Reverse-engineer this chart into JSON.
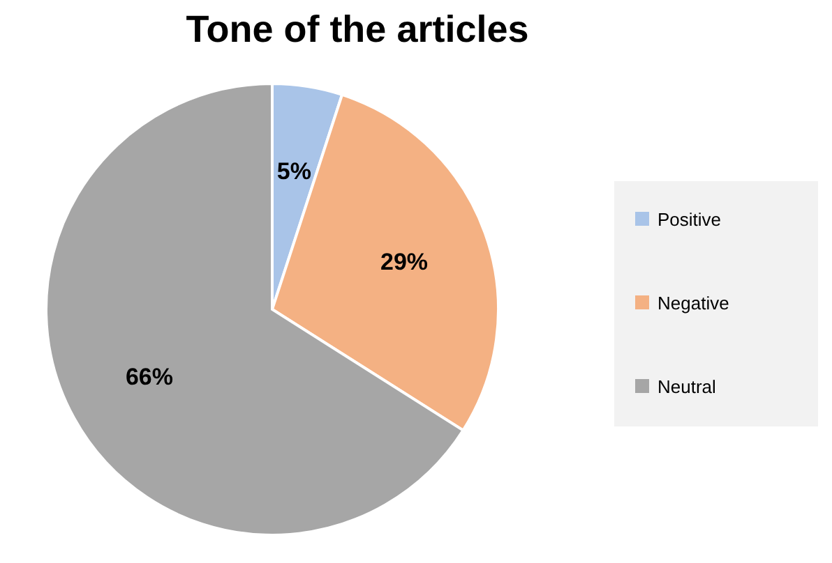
{
  "chart_data": {
    "type": "pie",
    "title": "Tone of the articles",
    "categories": [
      "Positive",
      "Negative",
      "Neutral"
    ],
    "values": [
      5,
      29,
      66
    ],
    "colors": [
      "#a9c4e8",
      "#f4b183",
      "#a6a6a6"
    ],
    "value_labels": [
      "5%",
      "29%",
      "66%"
    ],
    "legend": "right"
  }
}
